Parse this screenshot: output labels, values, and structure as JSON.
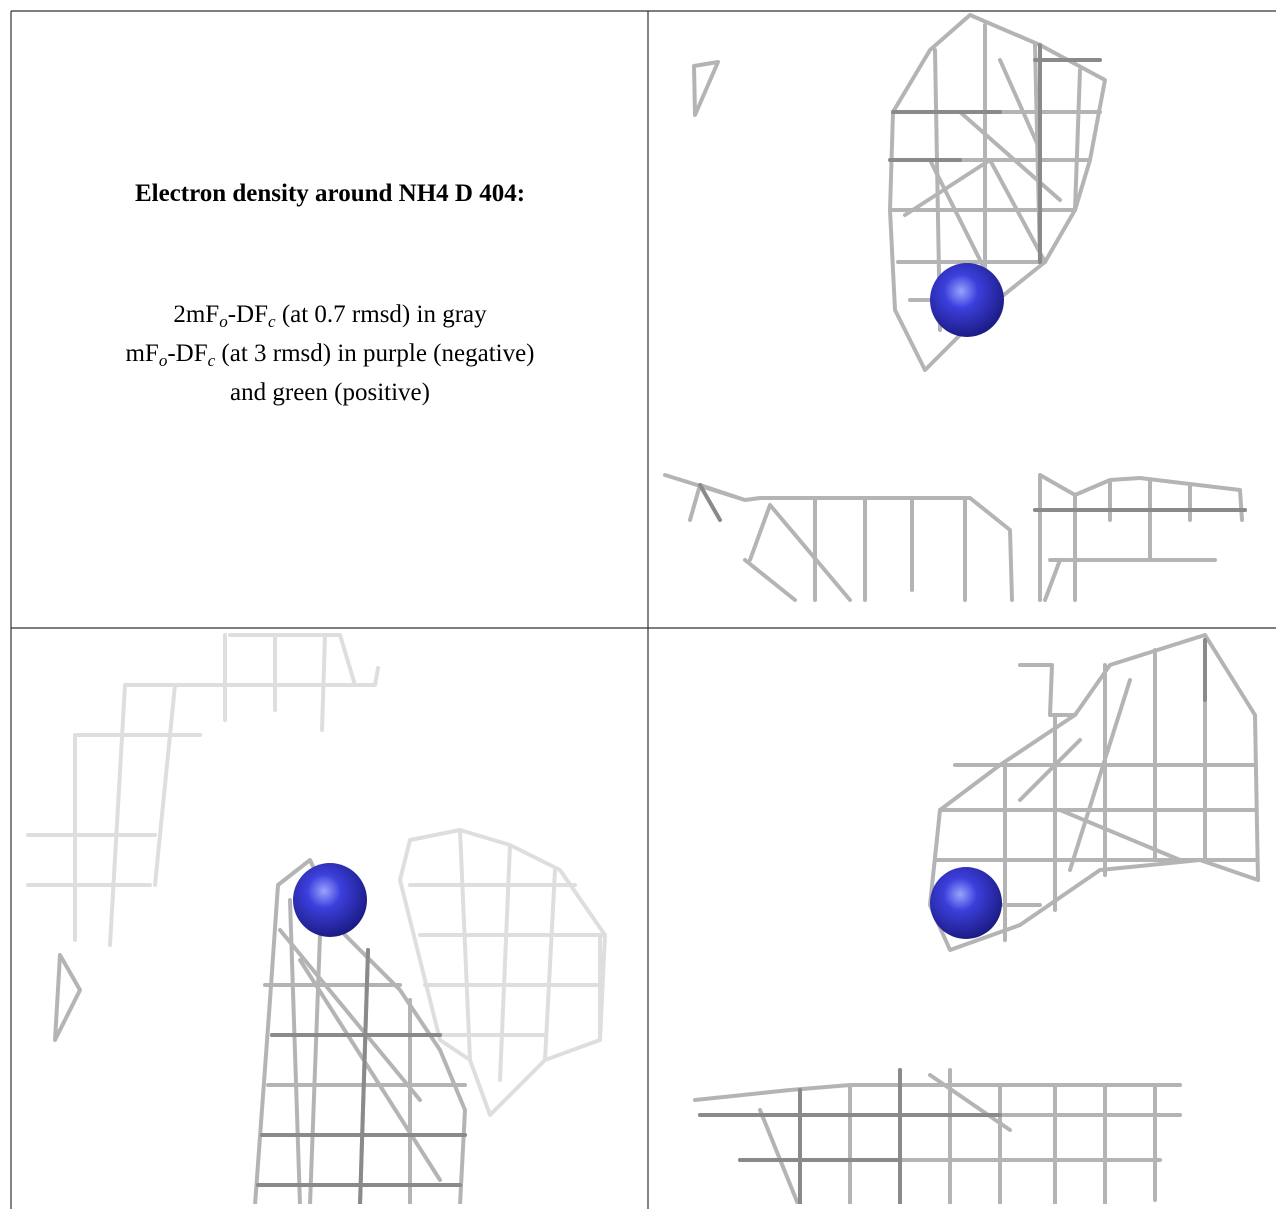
{
  "caption": {
    "title": "Electron density around NH4 D 404:",
    "lines": [
      [
        "2mF",
        "o",
        "-DF",
        "c",
        " (at 0.7 rmsd) in gray"
      ],
      [
        "mF",
        "o",
        "-DF",
        "c",
        " (at 3 rmsd) in purple (negative)"
      ],
      [
        "and green (positive)"
      ]
    ]
  }
}
